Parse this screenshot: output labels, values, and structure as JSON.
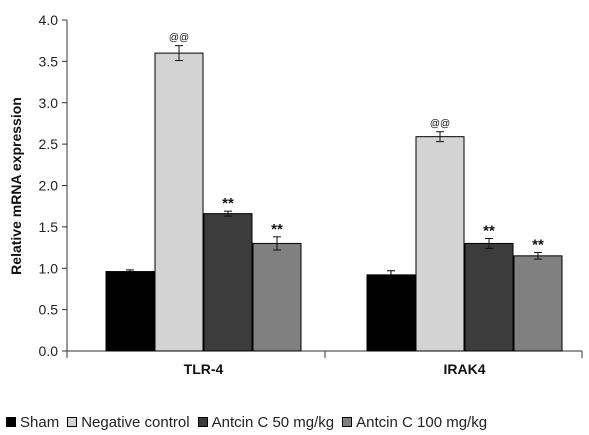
{
  "chart_data": {
    "type": "bar",
    "title": "",
    "xlabel": "",
    "ylabel": "Relative mRNA expression",
    "ylim": [
      0,
      4.0
    ],
    "yticks": [
      "0.0",
      "0.5",
      "1.0",
      "1.5",
      "2.0",
      "2.5",
      "3.0",
      "3.5",
      "4.0"
    ],
    "categories": [
      "TLR-4",
      "IRAK4"
    ],
    "series": [
      {
        "name": "Sham",
        "color": "#000000",
        "values": [
          0.96,
          0.92
        ],
        "errors": [
          0.02,
          0.05
        ],
        "annotations": [
          "",
          ""
        ]
      },
      {
        "name": "Negative control",
        "color": "#d3d3d3",
        "values": [
          3.6,
          2.59
        ],
        "errors": [
          0.09,
          0.06
        ],
        "annotations": [
          "@@",
          "@@"
        ]
      },
      {
        "name": "Antcin C 50 mg/kg",
        "color": "#3c3c3c",
        "values": [
          1.66,
          1.3
        ],
        "errors": [
          0.03,
          0.06
        ],
        "annotations": [
          "**",
          "**"
        ]
      },
      {
        "name": "Antcin C 100 mg/kg",
        "color": "#808080",
        "values": [
          1.3,
          1.15
        ],
        "errors": [
          0.08,
          0.04
        ],
        "annotations": [
          "**",
          "**"
        ]
      }
    ],
    "grid": false,
    "legend": "bottom"
  }
}
